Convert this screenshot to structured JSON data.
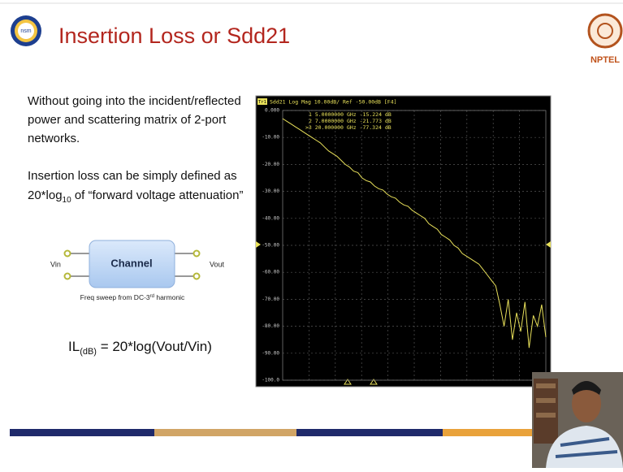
{
  "header": {
    "title": "Insertion Loss or Sdd21",
    "left_logo": "nsm",
    "right_logo": "NPTEL"
  },
  "body": {
    "paragraph1": [
      "Without going into the incident/reflected",
      "power and scattering matrix of 2-port",
      "networks."
    ],
    "paragraph2_line1": "Insertion loss can be simply defined as",
    "paragraph2_line2": {
      "before": "20*log",
      "subscript": "10",
      "after": " of “forward voltage attenuation”"
    }
  },
  "diagram": {
    "box_label": "Channel",
    "input_label": "Vin",
    "output_label": "Vout",
    "caption": {
      "before": "Freq sweep from DC-3",
      "superscript": "rd",
      "after": " harmonic"
    }
  },
  "formula": {
    "lhs": "IL",
    "lhs_subscript": "(dB)",
    "rhs": " =  20*log(Vout/Vin)"
  },
  "plot": {
    "type": "line",
    "channel_tag": "Tr1",
    "header": "Sdd21 Log Mag 10.00dB/ Ref -50.00dB [F4]",
    "markers": [
      "1   5.0000000 GHz -15.224 dB",
      "2   7.0000000 GHz -21.773 dB",
      ">3  20.000000 GHz -77.324 dB"
    ],
    "color": "#e8e05a",
    "ylim": [
      0,
      -100
    ],
    "yticks": [
      {
        "value": 0,
        "label": "0.000"
      },
      {
        "value": -10,
        "label": "-10.00"
      },
      {
        "value": -20,
        "label": "-20.00"
      },
      {
        "value": -30,
        "label": "-30.00"
      },
      {
        "value": -40,
        "label": "-40.00"
      },
      {
        "value": -50,
        "label": "-50.00"
      },
      {
        "value": -60,
        "label": "-60.00"
      },
      {
        "value": -70,
        "label": "-70.00"
      },
      {
        "value": -80,
        "label": "-80.00"
      },
      {
        "value": -90,
        "label": "-90.00"
      },
      {
        "value": -100,
        "label": "-100.0"
      }
    ],
    "values": [
      -3,
      -4,
      -5,
      -6,
      -7,
      -8,
      -9,
      -10,
      -11,
      -12,
      -13.5,
      -15,
      -16,
      -17,
      -18.5,
      -20,
      -21,
      -22.5,
      -23,
      -25,
      -26,
      -26.5,
      -28,
      -29,
      -29.5,
      -31,
      -32,
      -32.5,
      -34,
      -35,
      -35.5,
      -37,
      -38,
      -39,
      -40,
      -42,
      -43,
      -44,
      -46,
      -47,
      -48,
      -50,
      -51,
      -53,
      -54,
      -55,
      -56,
      -57,
      -59,
      -61,
      -63,
      -65,
      -72,
      -80,
      -70,
      -85,
      -75,
      -82,
      -71,
      -88,
      -76,
      -80,
      -72,
      -84
    ]
  }
}
